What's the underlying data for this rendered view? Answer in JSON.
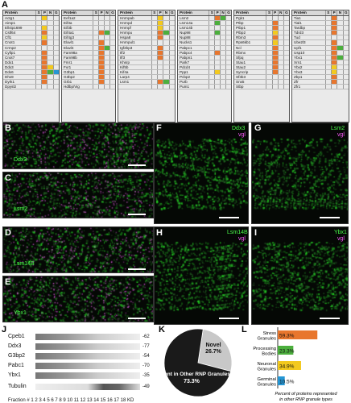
{
  "panels": {
    "A": "A",
    "B": "B",
    "C": "C",
    "D": "D",
    "E": "E",
    "F": "F",
    "G": "G",
    "H": "H",
    "I": "I",
    "J": "J",
    "K": "K",
    "L": "L"
  },
  "table_header": {
    "protein": "Protein",
    "S": "S",
    "P": "P",
    "N": "N",
    "G": "G"
  },
  "tables": [
    {
      "rows": [
        [
          "Actg1",
          "",
          "y",
          "",
          ""
        ],
        [
          "Aimp1",
          "",
          "",
          "",
          ""
        ],
        [
          "Ell4ip1699",
          "",
          "y",
          "",
          ""
        ],
        [
          "Cstf64",
          "",
          "o",
          "",
          ""
        ],
        [
          "Cfl1",
          "",
          "y",
          "",
          ""
        ],
        [
          "Cnot1",
          "",
          "o",
          "",
          ""
        ],
        [
          "Crmp2",
          "",
          "",
          "",
          ""
        ],
        [
          "Cyfip1",
          "",
          "o",
          "",
          ""
        ],
        [
          "Cnot7",
          "",
          "o",
          "",
          ""
        ],
        [
          "Ddx1",
          "",
          "o",
          "",
          ""
        ],
        [
          "Ddx3",
          "",
          "o",
          "y",
          ""
        ],
        [
          "Ddx6",
          "",
          "o",
          "g",
          "b"
        ],
        [
          "Dhx9",
          "",
          "o",
          "",
          ""
        ],
        [
          "Dyrk1",
          "",
          "o",
          "",
          ""
        ],
        [
          "Dpysl2",
          "",
          "",
          "",
          ""
        ]
      ]
    },
    {
      "rows": [
        [
          "Eef1a2",
          "",
          "",
          "",
          ""
        ],
        [
          "Eif3a",
          "",
          "",
          "",
          ""
        ],
        [
          "Eif3b",
          "",
          "",
          "",
          ""
        ],
        [
          "Eif4a1",
          "",
          "o",
          "g",
          ""
        ],
        [
          "Eif4g3",
          "",
          "",
          "",
          ""
        ],
        [
          "Elavl1",
          "",
          "o",
          "",
          ""
        ],
        [
          "Elavl4",
          "",
          "o",
          "g",
          ""
        ],
        [
          "Fam98a",
          "",
          "o",
          "",
          ""
        ],
        [
          "Fam98b",
          "",
          "o",
          "",
          ""
        ],
        [
          "Fmr1",
          "",
          "o",
          "",
          ""
        ],
        [
          "Fxr1",
          "",
          "o",
          "",
          ""
        ],
        [
          "G3bp1",
          "",
          "o",
          "",
          ""
        ],
        [
          "G3bp2",
          "",
          "o",
          "",
          ""
        ],
        [
          "Grb1",
          "",
          "o",
          "",
          ""
        ],
        [
          "Hdlbp/Vig",
          "",
          "",
          "",
          ""
        ]
      ]
    },
    {
      "rows": [
        [
          "Hnrnpab",
          "",
          "y",
          "",
          ""
        ],
        [
          "Hnrnpd",
          "",
          "y",
          "",
          ""
        ],
        [
          "Hnrnpf",
          "",
          "y",
          "",
          ""
        ],
        [
          "Hnrnpu",
          "",
          "o",
          "g",
          ""
        ],
        [
          "Hspa8",
          "",
          "o",
          "",
          ""
        ],
        [
          "Hnrnpul1",
          "",
          "",
          "",
          ""
        ],
        [
          "Igf2bp3",
          "",
          "o",
          "",
          ""
        ],
        [
          "Ilf2",
          "",
          "o",
          "",
          ""
        ],
        [
          "Ilf3",
          "",
          "o",
          "",
          ""
        ],
        [
          "Khsrp",
          "",
          "",
          "",
          ""
        ],
        [
          "Kif5b",
          "",
          "",
          "",
          ""
        ],
        [
          "Kif4a",
          "",
          "",
          "",
          ""
        ],
        [
          "Larp4",
          "",
          "",
          "",
          ""
        ],
        [
          "Lsm1",
          "",
          "o",
          "g",
          ""
        ],
        [
          "",
          "",
          " ",
          "",
          ""
        ]
      ]
    },
    {
      "rows": [
        [
          "Lsm2",
          "",
          "o",
          "g",
          ""
        ],
        [
          "Lsm14a",
          "",
          "g",
          "",
          ""
        ],
        [
          "Lsm14b",
          "",
          "",
          "",
          ""
        ],
        [
          "Nup98",
          "",
          "g",
          "",
          ""
        ],
        [
          "Nup88",
          "",
          "",
          "",
          ""
        ],
        [
          "Nucks1",
          "",
          "",
          "",
          ""
        ],
        [
          "Pabpc1",
          "",
          "",
          "",
          ""
        ],
        [
          "Pabpc4",
          "",
          "o",
          "",
          ""
        ],
        [
          "Pabpn1",
          "",
          "",
          "",
          ""
        ],
        [
          "Park7",
          "",
          "",
          "",
          ""
        ],
        [
          "Pdcd4",
          "",
          "",
          "",
          ""
        ],
        [
          "Ppp1",
          "",
          "y",
          "",
          ""
        ],
        [
          "Pcbp2",
          "",
          "",
          "",
          ""
        ],
        [
          "Purb",
          "",
          "",
          "",
          ""
        ],
        [
          "Pum1",
          "",
          "",
          "",
          ""
        ]
      ]
    },
    {
      "rows": [
        [
          "Pgk1",
          "",
          "",
          "",
          ""
        ],
        [
          "Ptbp",
          "",
          "o",
          "",
          ""
        ],
        [
          "Ptbp1",
          "",
          "o",
          "",
          ""
        ],
        [
          "Ptbp2",
          "",
          "y",
          "",
          ""
        ],
        [
          "Rbm3",
          "",
          "o",
          "",
          ""
        ],
        [
          "Rps6kb1",
          "",
          "y",
          "",
          ""
        ],
        [
          "Ncl",
          "",
          "o",
          "",
          ""
        ],
        [
          "Rbmx",
          "",
          "o",
          "",
          ""
        ],
        [
          "Sfpq",
          "",
          "o",
          "",
          ""
        ],
        [
          "Stau1",
          "",
          "o",
          "",
          ""
        ],
        [
          "Stau2",
          "",
          "o",
          "",
          ""
        ],
        [
          "Syncrip",
          "",
          "o",
          "",
          ""
        ],
        [
          "Sf3b3",
          "",
          "",
          "",
          ""
        ],
        [
          "Snx5",
          "",
          "",
          "",
          ""
        ],
        [
          "Stbp",
          "",
          "",
          "",
          ""
        ]
      ]
    },
    {
      "rows": [
        [
          "Tia1",
          "",
          "o",
          "",
          ""
        ],
        [
          "Tial1",
          "",
          "o",
          "",
          ""
        ],
        [
          "Tardbp",
          "",
          "o",
          "",
          ""
        ],
        [
          "Tdrd3",
          "",
          "o",
          "",
          ""
        ],
        [
          "Tud",
          "",
          "",
          "",
          ""
        ],
        [
          "Ube2l3",
          "",
          "o",
          "",
          ""
        ],
        [
          "Upf1",
          "",
          "o",
          "g",
          ""
        ],
        [
          "Usp10",
          "",
          "o",
          "",
          ""
        ],
        [
          "Ybx1",
          "",
          "o",
          "g",
          ""
        ],
        [
          "Xrn1",
          "",
          "o",
          "",
          ""
        ],
        [
          "Ybx2",
          "",
          "y",
          "",
          ""
        ],
        [
          "Ybx3",
          "",
          "y",
          "",
          ""
        ],
        [
          "Zbp1",
          "",
          "o",
          "",
          ""
        ],
        [
          "Zfr",
          "",
          "o",
          "",
          ""
        ],
        [
          "Zfr1",
          "",
          "",
          "",
          ""
        ]
      ]
    }
  ],
  "micro_labels": {
    "B": "Ddx3",
    "C": "Lsm2",
    "D": "Lsm14B",
    "E": "Ybx1",
    "F_green": "Ddx3",
    "F_magenta": "vgl",
    "G_green": "Lsm2",
    "G_magenta": "vgl",
    "H_green": "Lsm14B",
    "H_magenta": "vgl",
    "I_green": "Ybx1",
    "I_magenta": "vgl"
  },
  "blot": {
    "proteins": [
      "Cpeb1",
      "Ddx3",
      "G3bp2",
      "Pabc1",
      "Ybx1",
      "Tubulin"
    ],
    "kd": [
      "-62",
      "-77",
      "-54",
      "-70",
      "-35",
      "-49"
    ],
    "fraction_label": "Fraction #  1  2  3  4  5  6  7  8  9  10 11 12 13 14 15 16 17 18 KD"
  },
  "chart_data": [
    {
      "type": "pie",
      "values": [
        26.7,
        73.3
      ],
      "labels": [
        "Novel\n26.7%",
        "Present in Other RNP Granules\n73.3%"
      ],
      "slice_labels": {
        "novel_name": "Novel",
        "novel_pct": "26.7%",
        "other_name": "Present in Other RNP Granules",
        "other_pct": "73.3%"
      },
      "colors": [
        "#c8c8c8",
        "#1a1a1a"
      ]
    },
    {
      "type": "bar",
      "categories": [
        "Stress Granules",
        "Processing Bodies",
        "Neuronal Granules",
        "Germinal Granules"
      ],
      "values": [
        59.3,
        23.3,
        34.9,
        10.5
      ],
      "value_labels": [
        "59.3%",
        "23.3%",
        "34.9%",
        "10.5%"
      ],
      "colors": [
        "#e8762d",
        "#4caf3d",
        "#f3c91e",
        "#2596d4"
      ],
      "xlabel": "Percent of proteins represented in other RNP granule types",
      "xlim": [
        0,
        100
      ]
    }
  ]
}
